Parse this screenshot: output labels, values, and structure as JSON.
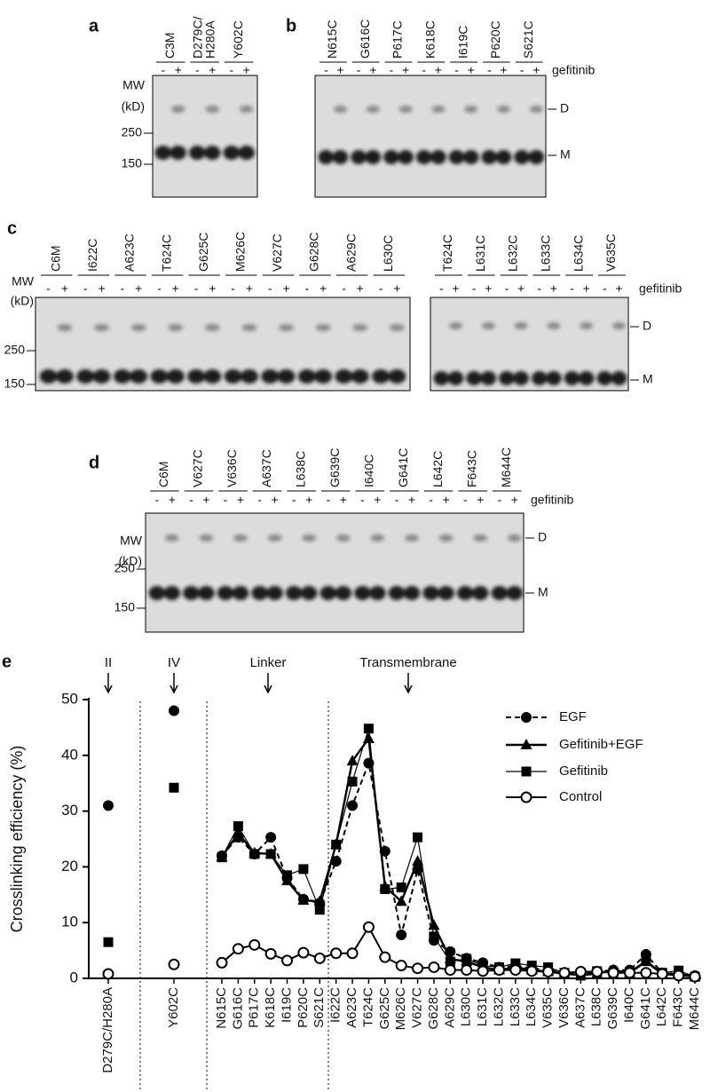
{
  "signs": [
    "-",
    "+"
  ],
  "panels": [
    {
      "label": "a",
      "blots": [
        {
          "lanes": [
            [
              "C3M"
            ],
            [
              "D279C/",
              "H280A"
            ],
            [
              "Y602C"
            ]
          ]
        }
      ],
      "mw": {
        "title": [
          "MW",
          "(kD)"
        ],
        "ticks": [
          "250",
          "150"
        ]
      }
    },
    {
      "label": "b",
      "blots": [
        {
          "lanes": [
            [
              "N615C"
            ],
            [
              "G616C"
            ],
            [
              "P617C"
            ],
            [
              "K618C"
            ],
            [
              "I619C"
            ],
            [
              "P620C"
            ],
            [
              "S621C"
            ]
          ]
        }
      ],
      "treatment": "gefitinib",
      "bands": [
        "D",
        "M"
      ]
    },
    {
      "label": "c",
      "blots": [
        {
          "lanes": [
            [
              "C6M"
            ],
            [
              "I622C"
            ],
            [
              "A623C"
            ],
            [
              "T624C"
            ],
            [
              "G625C"
            ],
            [
              "M626C"
            ],
            [
              "V627C"
            ],
            [
              "G628C"
            ],
            [
              "A629C"
            ],
            [
              "L630C"
            ]
          ]
        },
        {
          "lanes": [
            [
              "T624C"
            ],
            [
              "L631C"
            ],
            [
              "L632C"
            ],
            [
              "L633C"
            ],
            [
              "L634C"
            ],
            [
              "V635C"
            ]
          ]
        }
      ],
      "mw": {
        "title": [
          "MW",
          "(kD)"
        ],
        "ticks": [
          "250",
          "150"
        ]
      },
      "treatment": "gefitinib",
      "bands": [
        "D",
        "M"
      ]
    },
    {
      "label": "d",
      "blots": [
        {
          "lanes": [
            [
              "C6M"
            ],
            [
              "V627C"
            ],
            [
              "V636C"
            ],
            [
              "A637C"
            ],
            [
              "L638C"
            ],
            [
              "G639C"
            ],
            [
              "I640C"
            ],
            [
              "G641C"
            ],
            [
              "L642C"
            ],
            [
              "F643C"
            ],
            [
              "M644C"
            ]
          ]
        }
      ],
      "mw": {
        "title": [
          "MW",
          "(kD)"
        ],
        "ticks": [
          "250",
          "150"
        ]
      },
      "treatment": "gefitinib",
      "bands": [
        "D",
        "M"
      ]
    }
  ],
  "chart_data": {
    "type": "line",
    "panel_label": "e",
    "y_label": "Crosslinking efficiency (%)",
    "annotations": [
      "II",
      "IV",
      "Linker",
      "Transmembrane"
    ],
    "categories": [
      "D279C/H280A",
      "Y602C",
      "N615C",
      "G616C",
      "P617C",
      "K618C",
      "I619C",
      "P620C",
      "S621C",
      "I622C",
      "A623C",
      "T624C",
      "G625C",
      "M626C",
      "V627C",
      "G628C",
      "A629C",
      "L630C",
      "L631C",
      "L632C",
      "L633C",
      "L634C",
      "V635C",
      "V636C",
      "A637C",
      "L638C",
      "G639C",
      "I640C",
      "G641C",
      "L642C",
      "F643C",
      "M644C"
    ],
    "ylim": [
      0,
      50
    ],
    "yticks": [
      0,
      10,
      20,
      30,
      40,
      50
    ],
    "legend_position": "upper right",
    "series": [
      {
        "name": "EGF",
        "color": "#000000",
        "marker": "circle",
        "dashed": true,
        "values": [
          31,
          48,
          22,
          25.3,
          22.3,
          25.3,
          18,
          14.2,
          13.5,
          21,
          31,
          38.6,
          22.8,
          7.8,
          19.5,
          6.8,
          4.8,
          3.6,
          2.8,
          2,
          2.2,
          1.8,
          1.5,
          1,
          1,
          1.2,
          1.5,
          1.5,
          4.3,
          1,
          0.8,
          0.5
        ]
      },
      {
        "name": "Gefitinib+EGF",
        "color": "#000000",
        "marker": "triangle",
        "dashed": false,
        "values": [
          null,
          null,
          21.8,
          26,
          22.5,
          22.3,
          17.5,
          14,
          13.8,
          24,
          39,
          43,
          16.5,
          13.8,
          21,
          9.5,
          3.5,
          3,
          2,
          1.5,
          2,
          1.5,
          1.2,
          0.8,
          0.6,
          0.8,
          1.5,
          1,
          3,
          0.8,
          0.8,
          0.3
        ]
      },
      {
        "name": "Gefitinib",
        "color": "#000000",
        "marker": "square",
        "dashed": false,
        "values": [
          6.5,
          34.2,
          21.7,
          27.3,
          22.3,
          22.3,
          18.5,
          19.6,
          12.3,
          24,
          35.3,
          44.8,
          16,
          16.3,
          25.3,
          7.5,
          3,
          3.5,
          2.3,
          2,
          2.7,
          2.3,
          2,
          1,
          0.5,
          1.3,
          1,
          1.2,
          3.2,
          1,
          1.4,
          0.3
        ]
      },
      {
        "name": "Control",
        "color": "#000000",
        "marker": "open-circle",
        "dashed": false,
        "values": [
          0.8,
          2.5,
          2.8,
          5.3,
          6,
          4.4,
          3.2,
          4.6,
          3.6,
          4.5,
          4.5,
          9.2,
          3.8,
          2.3,
          1.8,
          2,
          1.5,
          1.5,
          1.3,
          1.5,
          1.5,
          1.3,
          1.2,
          1,
          1.2,
          1.2,
          1,
          1,
          1,
          0.8,
          0.5,
          0.3
        ]
      }
    ]
  }
}
